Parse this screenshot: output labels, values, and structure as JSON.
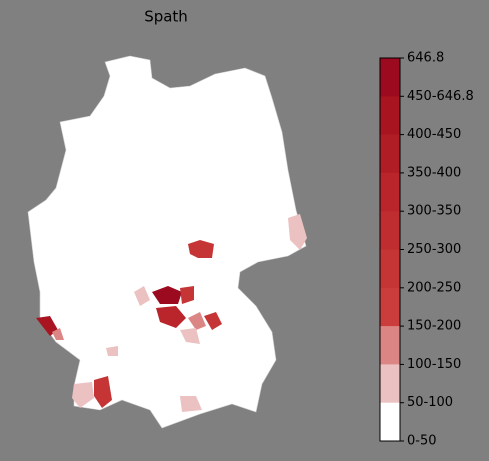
{
  "title": "Spath",
  "colorbar": {
    "labels": [
      "646.8",
      "450-646.8",
      "400-450",
      "350-400",
      "300-350",
      "250-300",
      "200-250",
      "150-200",
      "100-150",
      "50-100",
      "0-50"
    ],
    "colors": [
      "#9b0a1e",
      "#a8141f",
      "#b11d25",
      "#b9252b",
      "#bf2d30",
      "#c53535",
      "#cb3d3d",
      "#dc8585",
      "#ecc1c1",
      "#ffffff"
    ]
  }
}
